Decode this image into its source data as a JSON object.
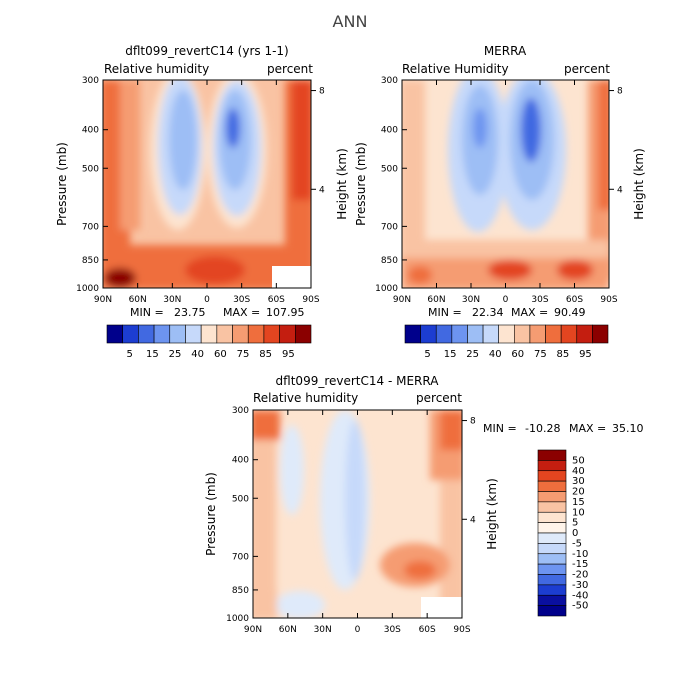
{
  "page_title": "ANN",
  "chart_data": [
    {
      "type": "heatmap",
      "id": "model",
      "title": "dflt099_revertC14 (yrs 1-1)",
      "left_label": "Relative humidity",
      "right_label": "percent",
      "ylabel": "Pressure (mb)",
      "ylabel_right": "Height (km)",
      "x_ticks": [
        "90N",
        "60N",
        "30N",
        "0",
        "30S",
        "60S",
        "90S"
      ],
      "x_values": [
        90,
        60,
        30,
        0,
        -30,
        -60,
        -90
      ],
      "y_ticks": [
        "300",
        "400",
        "500",
        "700",
        "850",
        "1000"
      ],
      "y_values": [
        300,
        400,
        500,
        700,
        850,
        1000
      ],
      "y_ticks_right": [
        "8",
        "4"
      ],
      "y_values_right": [
        8,
        4
      ],
      "ylim": [
        1000,
        300
      ],
      "xlim": [
        90,
        -90
      ],
      "min": "23.75",
      "max": "107.95",
      "colorbar_labels": [
        "5",
        "15",
        "25",
        "40",
        "60",
        "75",
        "85",
        "95"
      ],
      "colorbar_colors": [
        "#00008b",
        "#1c3dd1",
        "#4169e1",
        "#6d94f0",
        "#9dbef5",
        "#c6d9fa",
        "#fde4d0",
        "#f9c3a3",
        "#f59c72",
        "#ef6e3d",
        "#e34520",
        "#c41e10",
        "#8b0000"
      ]
    },
    {
      "type": "heatmap",
      "id": "obs",
      "title": "MERRA",
      "left_label": "Relative Humidity",
      "right_label": "percent",
      "ylabel": "Pressure (mb)",
      "ylabel_right": "Height (km)",
      "x_ticks": [
        "90N",
        "60N",
        "30N",
        "0",
        "30S",
        "60S",
        "90S"
      ],
      "x_values": [
        90,
        60,
        30,
        0,
        -30,
        -60,
        -90
      ],
      "y_ticks": [
        "300",
        "400",
        "500",
        "700",
        "850",
        "1000"
      ],
      "y_values": [
        300,
        400,
        500,
        700,
        850,
        1000
      ],
      "y_ticks_right": [
        "8",
        "4"
      ],
      "y_values_right": [
        8,
        4
      ],
      "ylim": [
        1000,
        300
      ],
      "xlim": [
        90,
        -90
      ],
      "min": "22.34",
      "max": "90.49",
      "colorbar_labels": [
        "5",
        "15",
        "25",
        "40",
        "60",
        "75",
        "85",
        "95"
      ],
      "colorbar_colors": [
        "#00008b",
        "#1c3dd1",
        "#4169e1",
        "#6d94f0",
        "#9dbef5",
        "#c6d9fa",
        "#fde4d0",
        "#f9c3a3",
        "#f59c72",
        "#ef6e3d",
        "#e34520",
        "#c41e10",
        "#8b0000"
      ]
    },
    {
      "type": "heatmap",
      "id": "diff",
      "title": "dflt099_revertC14 - MERRA",
      "left_label": "Relative humidity",
      "right_label": "percent",
      "ylabel": "Pressure (mb)",
      "ylabel_right": "Height (km)",
      "x_ticks": [
        "90N",
        "60N",
        "30N",
        "0",
        "30S",
        "60S",
        "90S"
      ],
      "x_values": [
        90,
        60,
        30,
        0,
        -30,
        -60,
        -90
      ],
      "y_ticks": [
        "300",
        "400",
        "500",
        "700",
        "850",
        "1000"
      ],
      "y_values": [
        300,
        400,
        500,
        700,
        850,
        1000
      ],
      "y_ticks_right": [
        "8",
        "4"
      ],
      "y_values_right": [
        8,
        4
      ],
      "ylim": [
        1000,
        300
      ],
      "xlim": [
        90,
        -90
      ],
      "min": "-10.28",
      "max": "35.10",
      "colorbar_labels": [
        "50",
        "40",
        "30",
        "20",
        "15",
        "10",
        "5",
        "0",
        "-5",
        "-10",
        "-15",
        "-20",
        "-30",
        "-40",
        "-50"
      ],
      "colorbar_colors": [
        "#8b0000",
        "#c41e10",
        "#e34520",
        "#ef6e3d",
        "#f59c72",
        "#f9c3a3",
        "#fde4d0",
        "#fff4ea",
        "#dfeafa",
        "#c6d9fa",
        "#9dbef5",
        "#6d94f0",
        "#4169e1",
        "#1c3dd1",
        "#0a0fa0",
        "#00008b"
      ]
    }
  ],
  "labels": {
    "min_prefix": "MIN =",
    "max_prefix": "MAX ="
  }
}
